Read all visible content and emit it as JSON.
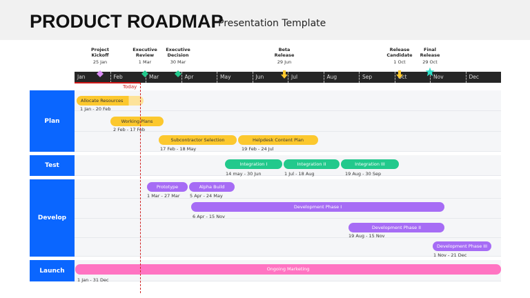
{
  "header": {
    "title": "PRODUCT ROADMAP",
    "subtitle": "Presentation Template"
  },
  "milestones": [
    {
      "name": "Project Kickoff",
      "l1": "Project",
      "l2": "Kickoff",
      "date": "25 Jan",
      "marker": "diamond",
      "color": "#d98cf5"
    },
    {
      "name": "Executive Review",
      "l1": "Executive",
      "l2": "Review",
      "date": "1 Mar",
      "marker": "diamond",
      "color": "#22c98c"
    },
    {
      "name": "Executive Decision",
      "l1": "Executive",
      "l2": "Decision",
      "date": "30 Mar",
      "marker": "diamond",
      "color": "#22c98c"
    },
    {
      "name": "Beta Release",
      "l1": "Beta",
      "l2": "Release",
      "date": "29  Jun",
      "marker": "arrow-down",
      "color": "#fcc82e"
    },
    {
      "name": "Release Candidate",
      "l1": "Release",
      "l2": "Candidate",
      "date": "1 Oct",
      "marker": "arrow-down",
      "color": "#fcc82e"
    },
    {
      "name": "Final Release",
      "l1": "Final",
      "l2": "Release",
      "date": "29 Oct",
      "marker": "star",
      "color": "#2ee0c8"
    }
  ],
  "months": [
    "Jan",
    "Feb",
    "Mar",
    "Apr",
    "May",
    "Jun",
    "Jul",
    "Aug",
    "Sep",
    "Oct",
    "Nov",
    "Dec"
  ],
  "today_label": "Today",
  "groups": {
    "plan": "Plan",
    "test": "Test",
    "develop": "Develop",
    "launch": "Launch"
  },
  "tasks": {
    "allocate": {
      "label": "Allocate Resources",
      "dates": "1 Jan - 20 Feb"
    },
    "working": {
      "label": "Working Plans",
      "dates": "2 Feb - 17 Feb"
    },
    "subcontractor": {
      "label": "Subcontractor Selection",
      "dates": "17 Feb - 18 May"
    },
    "helpdesk": {
      "label": "Helpdesk Content Plan",
      "dates": "19 Feb - 24 Jul"
    },
    "int1": {
      "label": "Integration I",
      "dates": "14 may - 30 Jun"
    },
    "int2": {
      "label": "Integration II",
      "dates": "1 Jul - 18 Aug"
    },
    "int3": {
      "label": "Integration III",
      "dates": "19 Aug - 30 Sep"
    },
    "prototype": {
      "label": "Prototype",
      "dates": "1 Mar - 27 Mar"
    },
    "alpha": {
      "label": "Alpha Build",
      "dates": "5 Apr - 24 May"
    },
    "dev1": {
      "label": "Development Phase I",
      "dates": "6 Apr - 15 Nov"
    },
    "dev2": {
      "label": "Development Phase II",
      "dates": "19 Aug - 15 Nov"
    },
    "dev3": {
      "label": "Development Phase III",
      "dates": "1 Nov - 21 Dec"
    },
    "marketing": {
      "label": "Ongoing Marketing",
      "dates": "1 Jan - 31 Dec"
    }
  },
  "colors": {
    "group": "#0a66ff",
    "plan": "#fcc82e",
    "test": "#22c98c",
    "develop": "#a66cf5",
    "launch": "#ff74c2",
    "today": "#d02020"
  }
}
